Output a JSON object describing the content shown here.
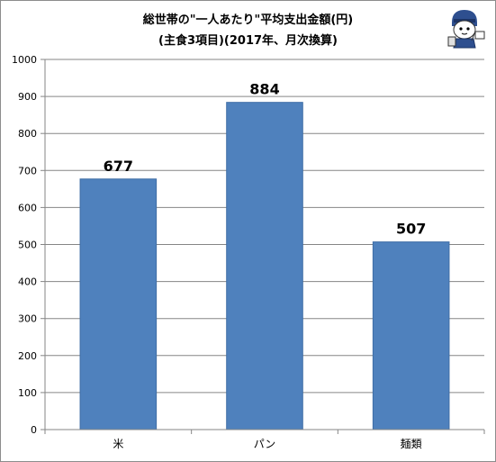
{
  "chart_data": {
    "type": "bar",
    "title": "総世帯の\"一人あたり\"平均支出金額(円)",
    "subtitle": "(主食3項目)(2017年、月次換算)",
    "categories": [
      "米",
      "パン",
      "麺類"
    ],
    "values": [
      677,
      884,
      507
    ],
    "value_labels": [
      "677",
      "884",
      "507"
    ],
    "ylim": [
      0,
      1000
    ],
    "yticks": [
      "0",
      "100",
      "200",
      "300",
      "400",
      "500",
      "600",
      "700",
      "800",
      "900",
      "1000"
    ],
    "grid": true,
    "legend": "none",
    "bar_color": "#4f81bd",
    "bar_edge_color": "#3f6ea6"
  }
}
